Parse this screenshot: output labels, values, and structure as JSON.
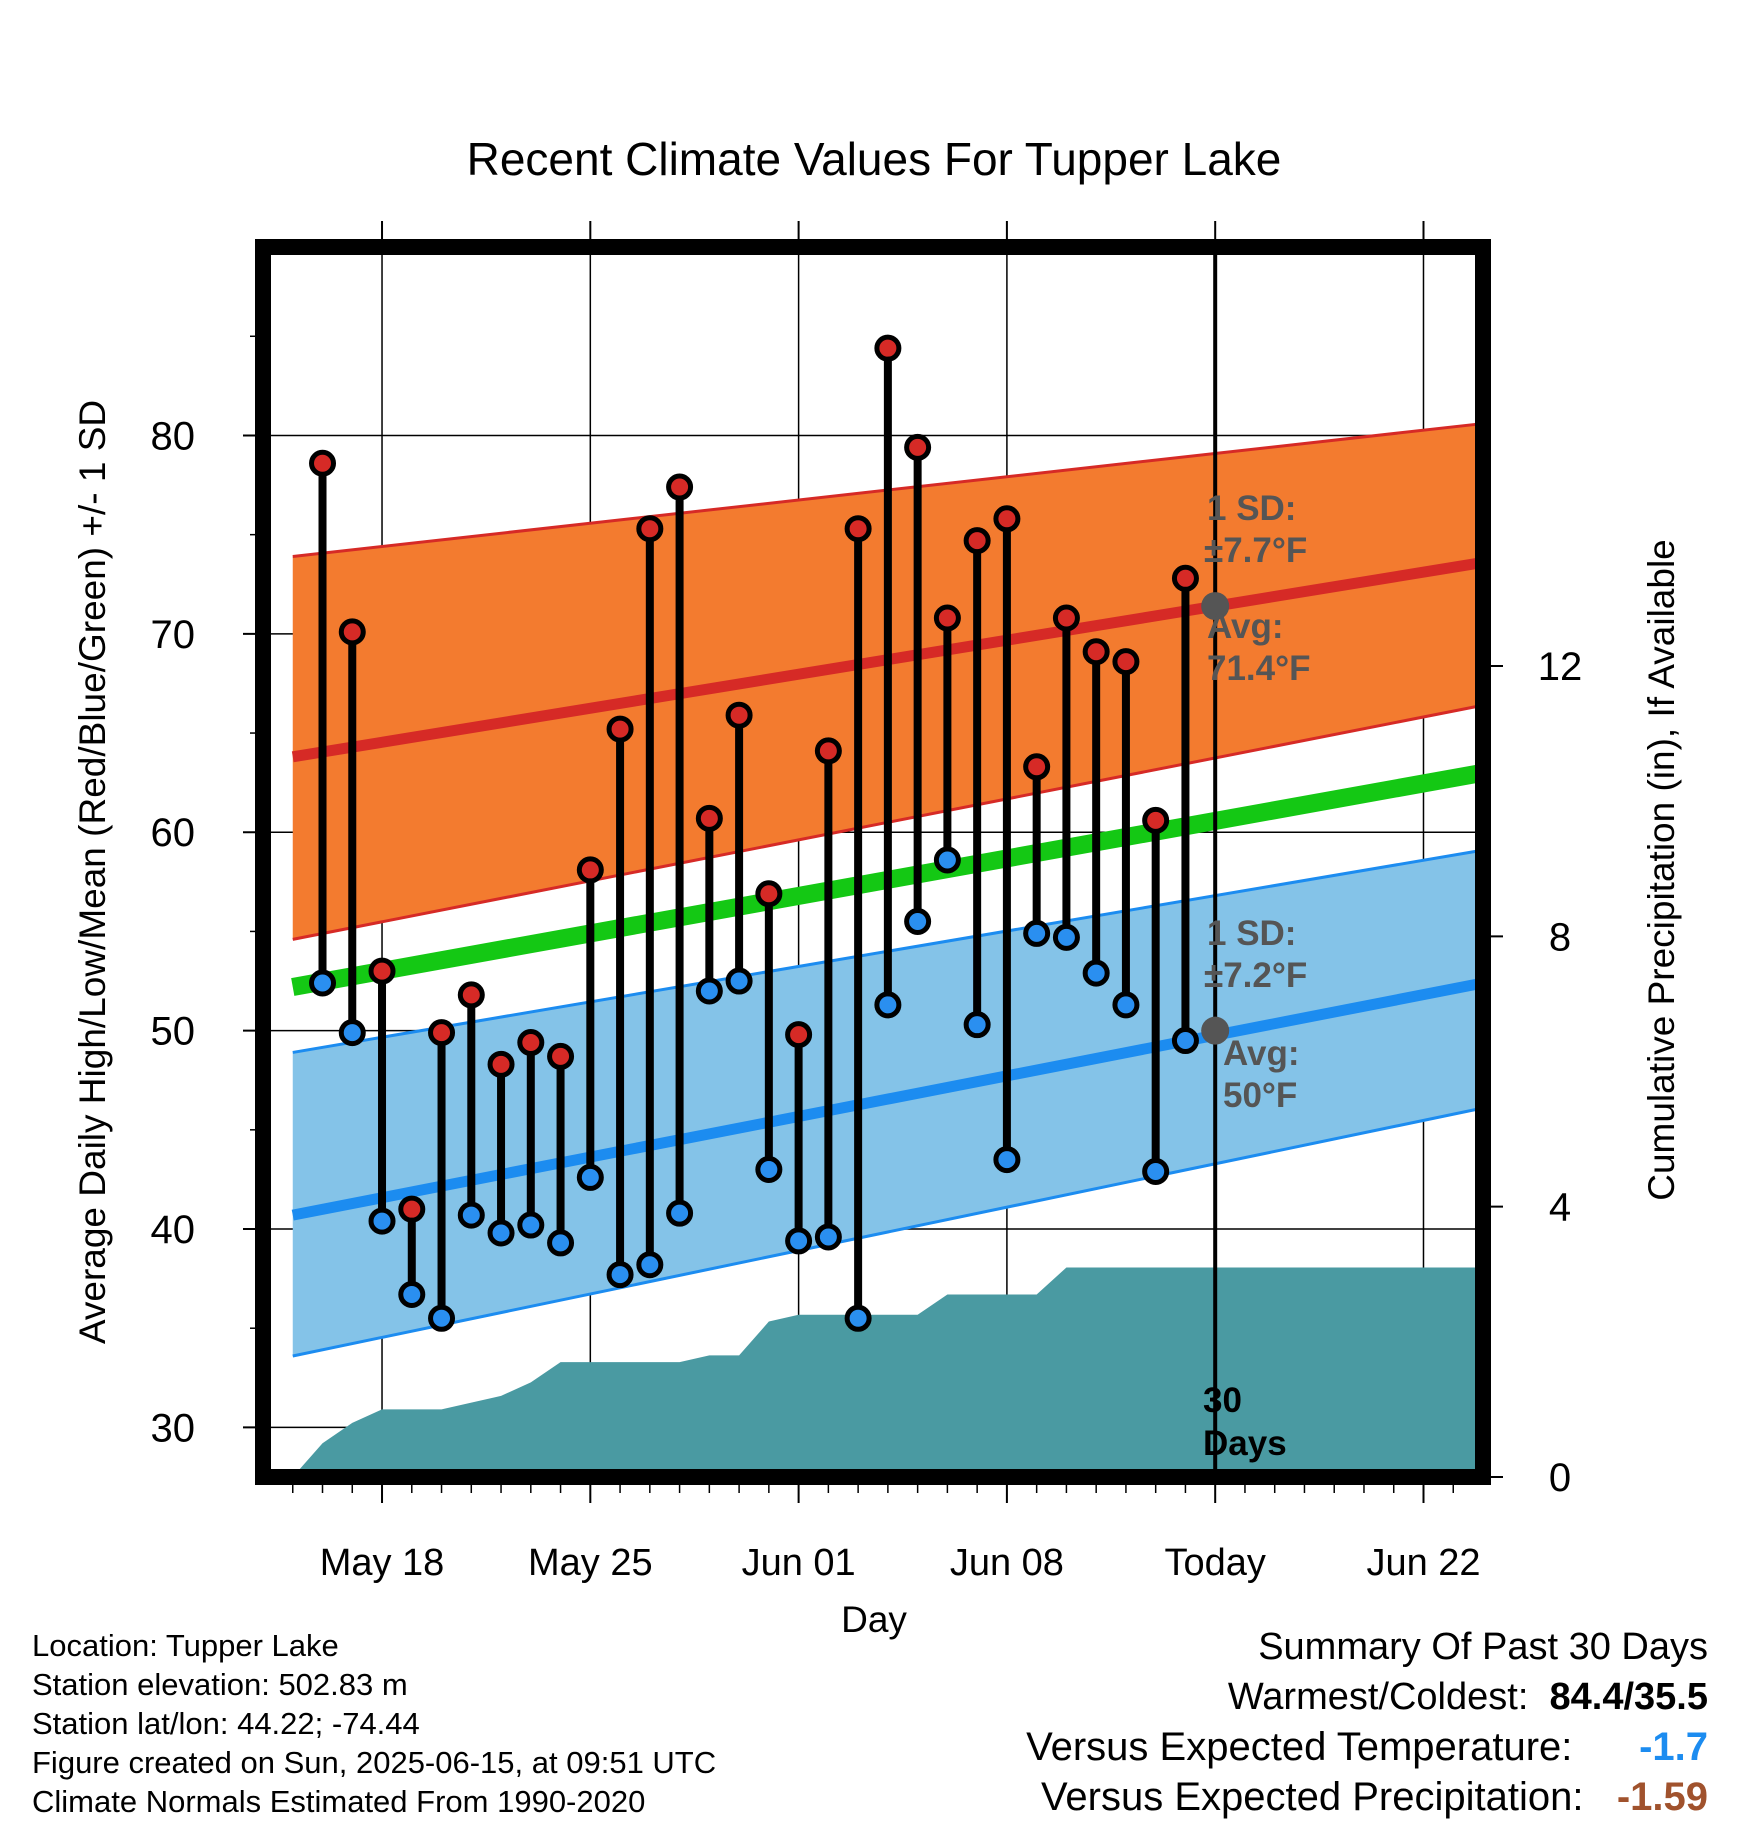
{
  "chart_data": {
    "type": "line",
    "title": "Recent Climate Values For Tupper Lake",
    "xlabel": "Day",
    "ylabel": "Average Daily High/Low/Mean (Red/Blue/Green) +/- 1 SD",
    "ylabel_right": "Cumulative Precipitation (in), If Available",
    "x_tick_labels": [
      "May 18",
      "May 25",
      "Jun 01",
      "Jun 08",
      "Today",
      "Jun 22"
    ],
    "x_tick_dates": [
      "2025-05-18",
      "2025-05-25",
      "2025-06-01",
      "2025-06-08",
      "2025-06-15",
      "2025-06-22"
    ],
    "xlim": [
      "2025-05-14",
      "2025-06-24"
    ],
    "ylim": [
      27.5,
      89.5
    ],
    "y_ticks": [
      30,
      40,
      50,
      60,
      70,
      80
    ],
    "y2lim": [
      0,
      18.2
    ],
    "y2_ticks": [
      0,
      4,
      8,
      12
    ],
    "grid": true,
    "today_date": "2025-06-15",
    "days": [
      "2025-05-16",
      "2025-05-17",
      "2025-05-18",
      "2025-05-19",
      "2025-05-20",
      "2025-05-21",
      "2025-05-22",
      "2025-05-23",
      "2025-05-24",
      "2025-05-25",
      "2025-05-26",
      "2025-05-27",
      "2025-05-28",
      "2025-05-29",
      "2025-05-30",
      "2025-05-31",
      "2025-06-01",
      "2025-06-02",
      "2025-06-03",
      "2025-06-04",
      "2025-06-05",
      "2025-06-06",
      "2025-06-07",
      "2025-06-08",
      "2025-06-09",
      "2025-06-10",
      "2025-06-11",
      "2025-06-12",
      "2025-06-13",
      "2025-06-14"
    ],
    "highs": [
      78.6,
      70.1,
      53.0,
      41.0,
      49.9,
      51.8,
      48.3,
      49.4,
      48.7,
      58.1,
      65.2,
      75.3,
      77.4,
      60.7,
      65.9,
      56.9,
      49.8,
      64.1,
      75.3,
      84.4,
      79.4,
      70.8,
      74.7,
      75.8,
      63.3,
      70.8,
      69.1,
      68.6,
      60.6,
      72.8
    ],
    "lows": [
      52.4,
      49.9,
      40.4,
      36.7,
      35.5,
      40.7,
      39.8,
      40.2,
      39.3,
      42.6,
      37.7,
      38.2,
      40.8,
      52.0,
      52.5,
      43.0,
      39.4,
      39.6,
      35.5,
      51.3,
      55.5,
      58.6,
      50.3,
      43.5,
      54.9,
      54.7,
      52.9,
      51.3,
      42.9,
      49.5
    ],
    "precip_dates": [
      "2025-05-15",
      "2025-05-16",
      "2025-05-17",
      "2025-05-18",
      "2025-05-19",
      "2025-05-20",
      "2025-05-21",
      "2025-05-22",
      "2025-05-23",
      "2025-05-24",
      "2025-05-25",
      "2025-05-26",
      "2025-05-27",
      "2025-05-28",
      "2025-05-29",
      "2025-05-30",
      "2025-05-31",
      "2025-06-01",
      "2025-06-02",
      "2025-06-03",
      "2025-06-04",
      "2025-06-05",
      "2025-06-06",
      "2025-06-07",
      "2025-06-08",
      "2025-06-09",
      "2025-06-10",
      "2025-06-11",
      "2025-06-12",
      "2025-06-13",
      "2025-06-14",
      "2025-06-15",
      "2025-06-24"
    ],
    "cum_precip": [
      0,
      0.5,
      0.8,
      1.0,
      1.0,
      1.0,
      1.1,
      1.2,
      1.4,
      1.7,
      1.7,
      1.7,
      1.7,
      1.7,
      1.8,
      1.8,
      2.3,
      2.4,
      2.4,
      2.4,
      2.4,
      2.4,
      2.7,
      2.7,
      2.7,
      2.7,
      3.1,
      3.1,
      3.1,
      3.1,
      3.1,
      3.1,
      3.1
    ],
    "normal_dates": [
      "2025-05-15",
      "2025-06-24"
    ],
    "normal_high": [
      63.8,
      73.6
    ],
    "normal_high_sd_upper": [
      73.9,
      80.6
    ],
    "normal_high_sd_lower": [
      54.6,
      66.4
    ],
    "normal_low": [
      40.7,
      52.4
    ],
    "normal_low_sd_upper": [
      48.9,
      59.1
    ],
    "normal_low_sd_lower": [
      33.6,
      46.1
    ],
    "normal_mean": [
      52.2,
      63.0
    ],
    "annotations": {
      "high_sd_label": "1 SD:",
      "high_sd_value": "±7.7°F",
      "high_avg_label": "Avg:",
      "high_avg_value": "71.4°F",
      "high_avg": 71.4,
      "low_sd_label": "1 SD:",
      "low_sd_value": "±7.2°F",
      "low_avg_label": "Avg:",
      "low_avg_value": "50°F",
      "low_avg": 50.0,
      "days_number": "30",
      "days_word": "Days"
    },
    "colors": {
      "high_band": "#f37b2f",
      "high_line": "#d62a26",
      "low_band": "#84c3e8",
      "low_line": "#1c8cf0",
      "mean_line": "#14c814",
      "precip_fill": "#4a9aa2",
      "high_marker": "#d62a26",
      "low_marker": "#2a8ff0",
      "avg_marker": "#555555",
      "annotation_text": "#555555"
    }
  },
  "info": {
    "location": "Location: Tupper Lake",
    "elevation": "Station elevation: 502.83 m",
    "latlon": "Station lat/lon: 44.22; -74.44",
    "created": "Figure created on Sun, 2025-06-15, at 09:51 UTC",
    "normals": "Climate Normals Estimated From 1990-2020"
  },
  "summary": {
    "title": "Summary Of Past 30 Days",
    "warmest_label": "Warmest/Coldest:",
    "warmest_value": "84.4/35.5",
    "temp_label": "Versus Expected Temperature:",
    "temp_value": "-1.7",
    "temp_color": "#1c8cf0",
    "precip_label": "Versus Expected Precipitation:",
    "precip_value": "-1.59",
    "precip_color": "#a0522d"
  }
}
